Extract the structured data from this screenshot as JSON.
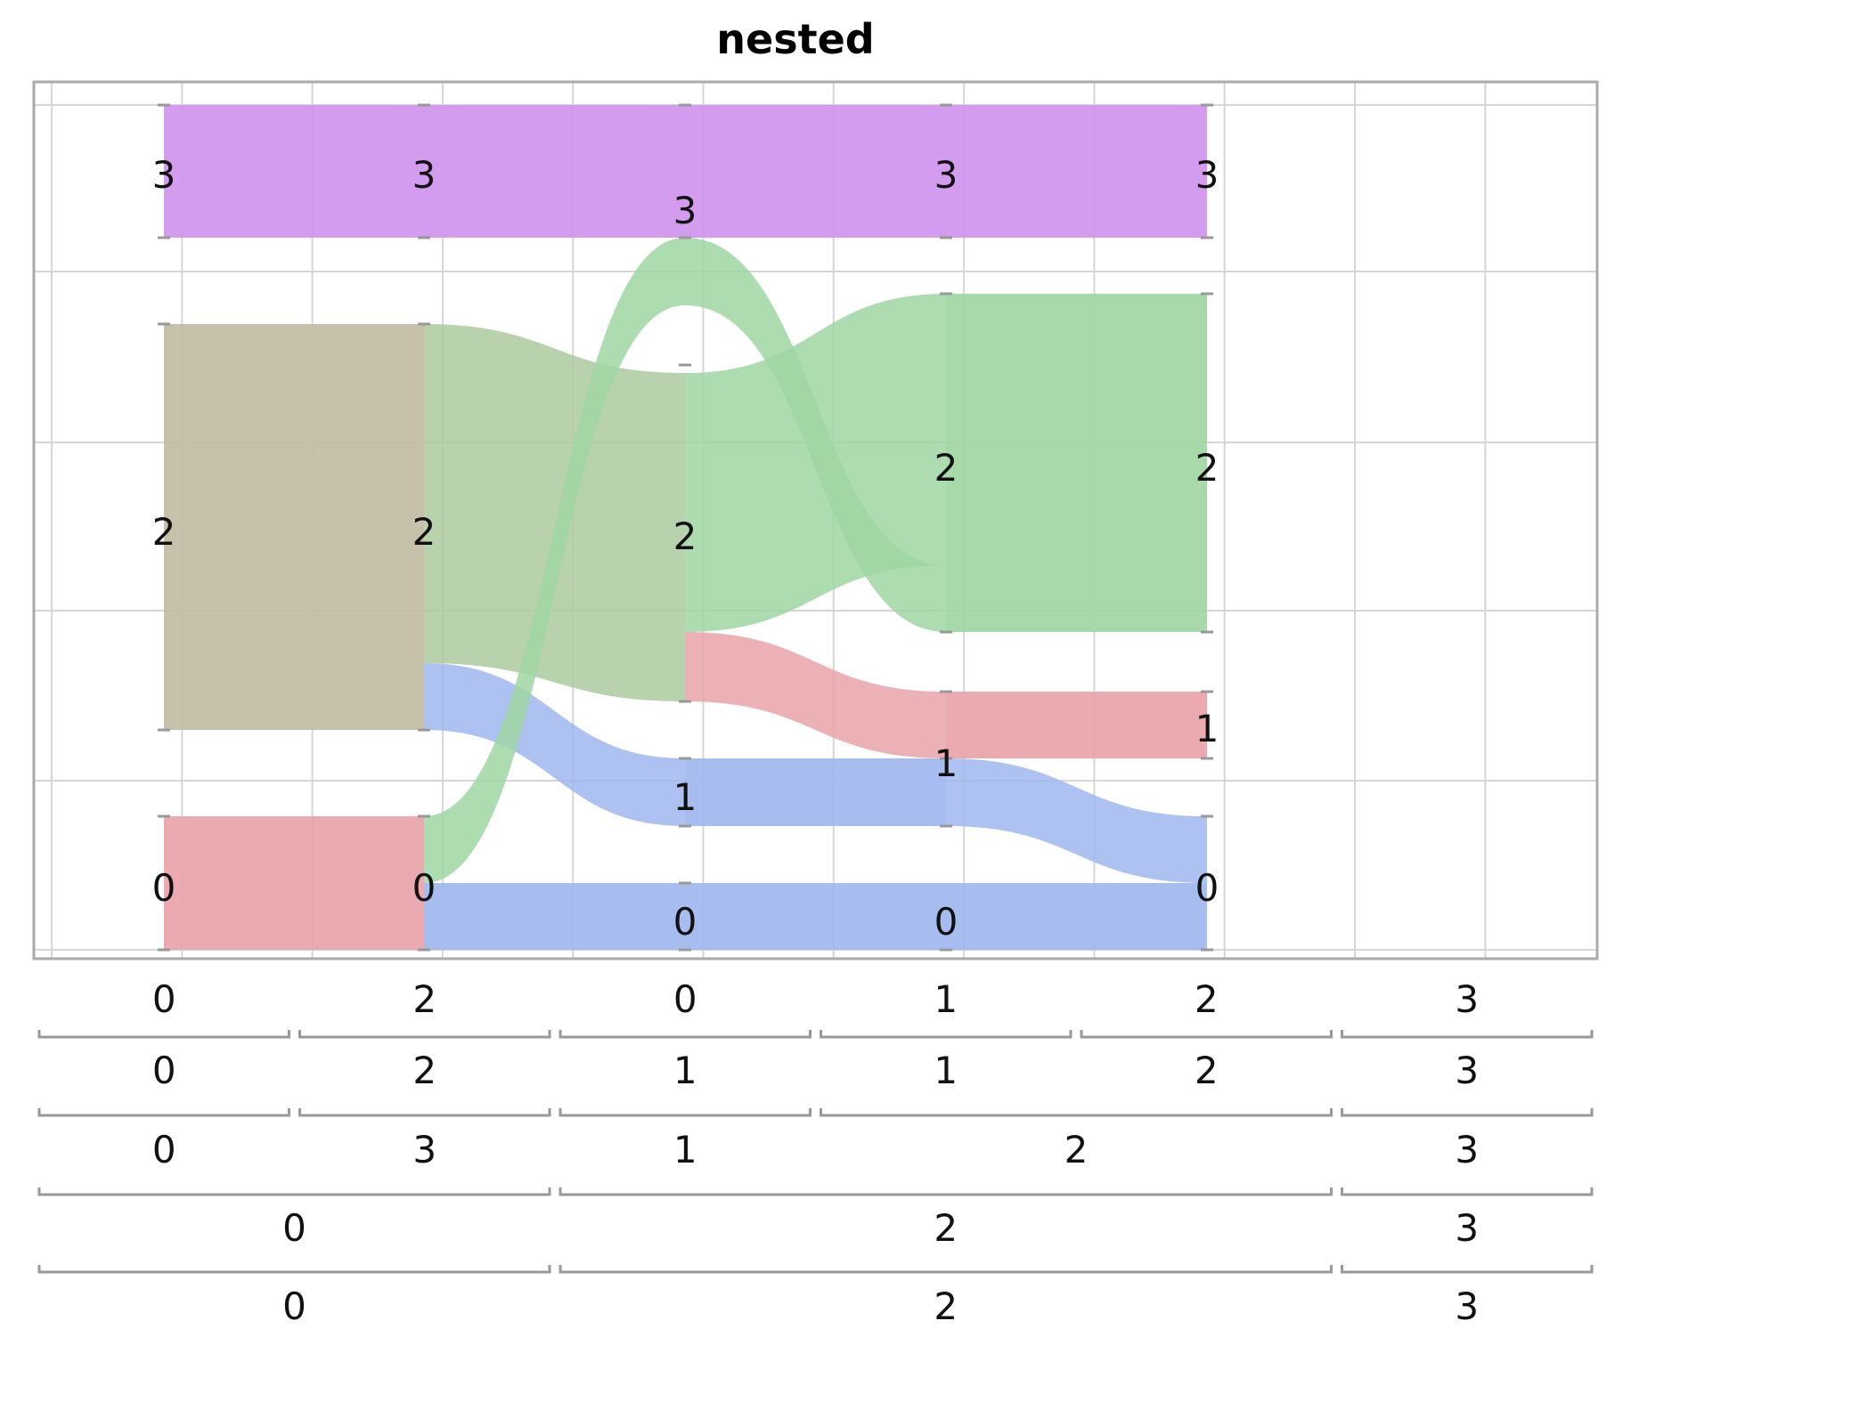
{
  "chart_data": {
    "type": "sankey",
    "title": "nested",
    "colors": {
      "0": "#e8a3a8",
      "1": "#a0b7ee",
      "2": "#9fd6a3",
      "3": "#d094ee",
      "2_from_0_4": "#c1bca3",
      "2_from_1": "#acca9f"
    },
    "node_labels": [
      {
        "col": 0,
        "value": "3"
      },
      {
        "col": 0,
        "value": "2"
      },
      {
        "col": 0,
        "value": "0"
      },
      {
        "col": 1,
        "value": "3"
      },
      {
        "col": 1,
        "value": "2"
      },
      {
        "col": 1,
        "value": "0"
      },
      {
        "col": 2,
        "value": "3"
      },
      {
        "col": 2,
        "value": "2"
      },
      {
        "col": 2,
        "value": "1"
      },
      {
        "col": 2,
        "value": "0"
      },
      {
        "col": 3,
        "value": "3"
      },
      {
        "col": 3,
        "value": "2"
      },
      {
        "col": 3,
        "value": "1"
      },
      {
        "col": 3,
        "value": "0"
      },
      {
        "col": 4,
        "value": "3"
      },
      {
        "col": 4,
        "value": "2"
      },
      {
        "col": 4,
        "value": "1"
      },
      {
        "col": 4,
        "value": "0"
      }
    ],
    "x_levels": [
      [
        {
          "label": "0",
          "span": [
            0,
            0
          ]
        },
        {
          "label": "2",
          "span": [
            1,
            1
          ]
        },
        {
          "label": "0",
          "span": [
            2,
            2
          ]
        },
        {
          "label": "1",
          "span": [
            3,
            3
          ]
        },
        {
          "label": "2",
          "span": [
            4,
            4
          ]
        },
        {
          "label": "3",
          "span": [
            5,
            5
          ]
        }
      ],
      [
        {
          "label": "0",
          "span": [
            0,
            0
          ]
        },
        {
          "label": "2",
          "span": [
            1,
            1
          ]
        },
        {
          "label": "1",
          "span": [
            2,
            2
          ]
        },
        {
          "label": "1",
          "span": [
            3,
            3
          ]
        },
        {
          "label": "2",
          "span": [
            4,
            4
          ]
        },
        {
          "label": "3",
          "span": [
            5,
            5
          ]
        }
      ],
      [
        {
          "label": "0",
          "span": [
            0,
            0
          ]
        },
        {
          "label": "3",
          "span": [
            1,
            1
          ]
        },
        {
          "label": "1",
          "span": [
            2,
            2
          ]
        },
        {
          "label": "2",
          "span": [
            3,
            4
          ]
        },
        {
          "label": "3",
          "span": [
            5,
            5
          ]
        }
      ],
      [
        {
          "label": "0",
          "span": [
            0,
            1
          ]
        },
        {
          "label": "2",
          "span": [
            2,
            4
          ]
        },
        {
          "label": "3",
          "span": [
            5,
            5
          ]
        }
      ],
      [
        {
          "label": "0",
          "span": [
            0,
            1
          ]
        },
        {
          "label": "2",
          "span": [
            2,
            4
          ]
        },
        {
          "label": "3",
          "span": [
            5,
            5
          ]
        }
      ]
    ]
  }
}
